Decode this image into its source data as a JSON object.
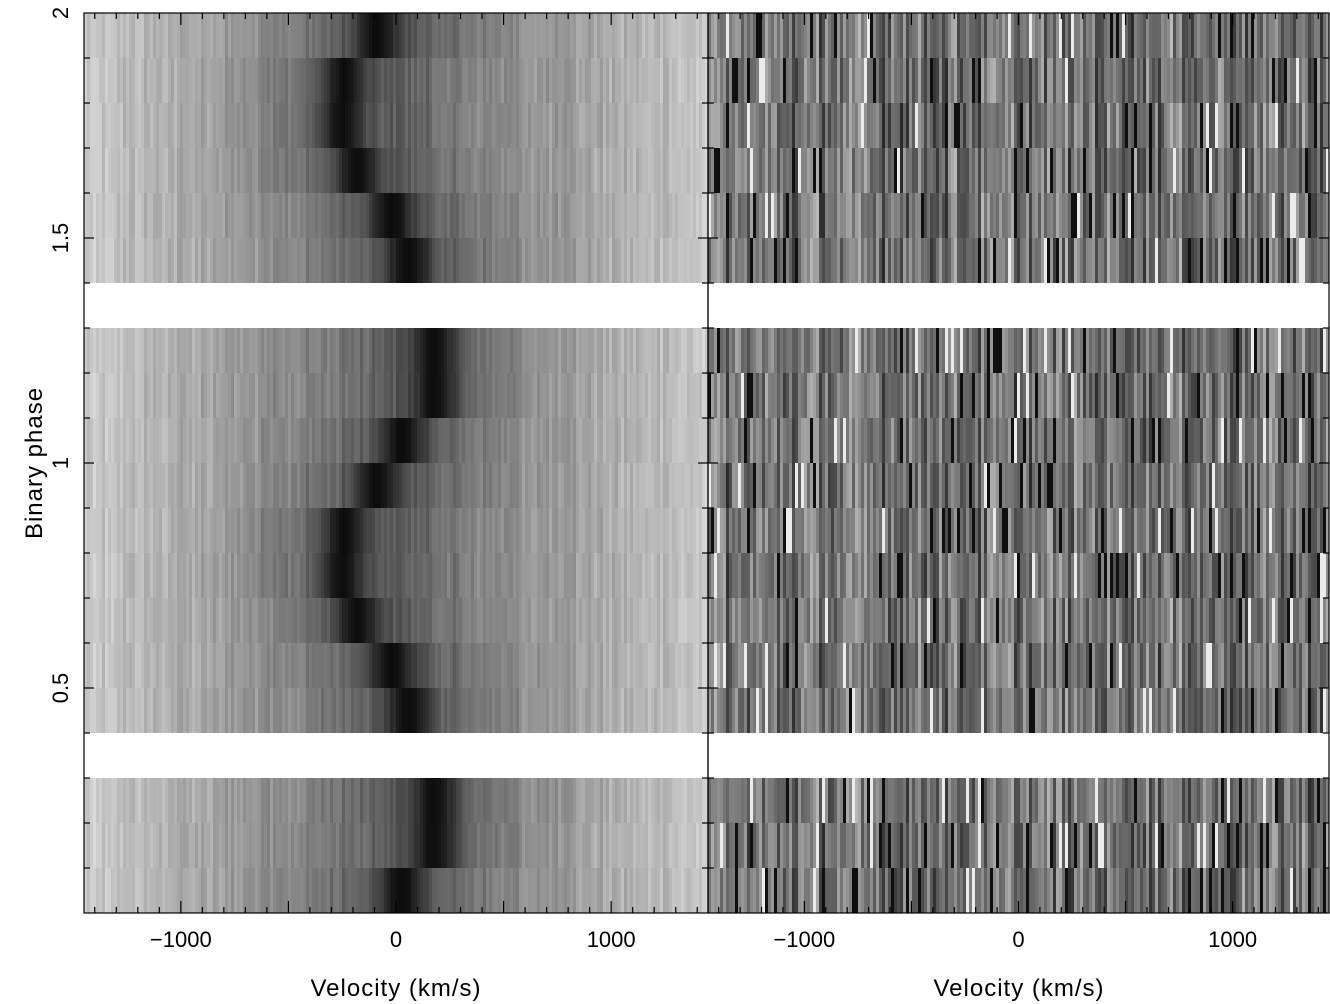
{
  "chart_data": {
    "type": "heatmap",
    "ylabel": "Binary phase",
    "ylim": [
      0,
      2
    ],
    "yticks_major": [
      0.5,
      1,
      1.5,
      2
    ],
    "ytick_labels": [
      "0.5",
      "1",
      "1.5",
      "2"
    ],
    "colormap": "grayscale (dark = low, light = high)",
    "phase_bins": [
      0.0,
      0.1,
      0.2,
      0.3,
      0.4,
      0.5,
      0.6,
      0.7,
      0.8,
      0.9
    ],
    "phase_bins_without_data": [
      0.3
    ],
    "phase_bin_width": 0.1,
    "panels": [
      {
        "name": "left",
        "xlabel": "Velocity (km/s)",
        "xlim": [
          -1450,
          1450
        ],
        "xticks": [
          -1000,
          0,
          1000
        ],
        "xtick_labels": [
          "−1000",
          "0",
          "1000"
        ],
        "noise_level": "low",
        "feature": "dark absorption trail with S-wave motion",
        "line_center_vs_phase": [
          {
            "phase": 0.05,
            "velocity": 30
          },
          {
            "phase": 0.15,
            "velocity": 180
          },
          {
            "phase": 0.25,
            "velocity": 180
          },
          {
            "phase": 0.45,
            "velocity": 60
          },
          {
            "phase": 0.55,
            "velocity": -20
          },
          {
            "phase": 0.65,
            "velocity": -180
          },
          {
            "phase": 0.75,
            "velocity": -250
          },
          {
            "phase": 0.85,
            "velocity": -240
          },
          {
            "phase": 0.95,
            "velocity": -90
          }
        ]
      },
      {
        "name": "right",
        "xlabel": "Velocity (km/s)",
        "xlim": [
          -1450,
          1450
        ],
        "xticks": [
          -1000,
          0,
          1000
        ],
        "xtick_labels": [
          "−1000",
          "0",
          "1000"
        ],
        "noise_level": "high",
        "feature": "noisy residuals, no clear trail"
      }
    ]
  }
}
